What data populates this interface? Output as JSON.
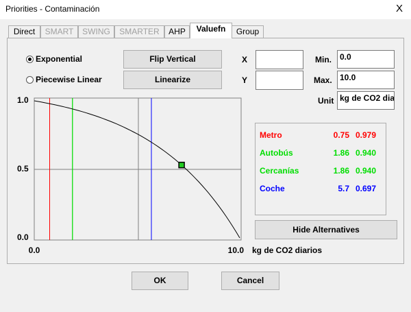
{
  "window": {
    "title": "Priorities - Contaminación",
    "close": "X"
  },
  "tabs": [
    {
      "label": "Direct",
      "enabled": true,
      "active": false
    },
    {
      "label": "SMART",
      "enabled": false,
      "active": false
    },
    {
      "label": "SWING",
      "enabled": false,
      "active": false
    },
    {
      "label": "SMARTER",
      "enabled": false,
      "active": false
    },
    {
      "label": "AHP",
      "enabled": true,
      "active": false
    },
    {
      "label": "Valuefn",
      "enabled": true,
      "active": true
    },
    {
      "label": "Group",
      "enabled": true,
      "active": false
    }
  ],
  "shape": [
    {
      "label": "Exponential",
      "selected": true
    },
    {
      "label": "Piecewise Linear",
      "selected": false
    }
  ],
  "buttons": {
    "flip": "Flip Vertical",
    "linearize": "Linearize",
    "hide": "Hide Alternatives",
    "ok": "OK",
    "cancel": "Cancel"
  },
  "fields": {
    "x_label": "X",
    "y_label": "Y",
    "min_label": "Min.",
    "min": "0.0",
    "max_label": "Max.",
    "max": "10.0",
    "unit_label": "Unit",
    "unit": "kg de CO2 dia"
  },
  "plot": {
    "xticks": [
      {
        "value": 0,
        "label": "0.0"
      },
      {
        "value": 10,
        "label": "10.0"
      }
    ],
    "yticks": [
      {
        "value": 0,
        "label": "0.0"
      },
      {
        "value": 0.5,
        "label": "0.5"
      },
      {
        "value": 1,
        "label": "1.0"
      }
    ],
    "x_unit": "kg de CO2 diarios"
  },
  "alternatives": [
    {
      "name": "Metro",
      "value": 0.75,
      "score": "0.979",
      "color": "#ff0000"
    },
    {
      "name": "Autobús",
      "value": 1.86,
      "score": "0.940",
      "color": "#00dd00"
    },
    {
      "name": "Cercanías",
      "value": 1.86,
      "score": "0.940",
      "color": "#00dd00"
    },
    {
      "name": "Coche",
      "value": 5.7,
      "score": "0.697",
      "color": "#0000ff"
    }
  ]
}
